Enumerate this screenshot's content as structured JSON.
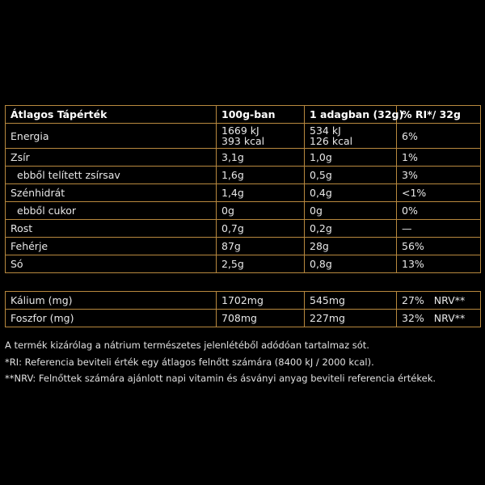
{
  "colors": {
    "border": "#b8893f",
    "background": "#000000"
  },
  "main_table": {
    "headers": [
      "Átlagos Tápérték",
      "100g-ban",
      "1 adagban (32g)",
      "% RI*/ 32g"
    ],
    "rows": [
      {
        "label": "Energia",
        "per100": [
          "1669 kJ",
          "393 kcal"
        ],
        "perServing": [
          "534 kJ",
          "126 kcal"
        ],
        "ri": "6%"
      },
      {
        "label": "Zsír",
        "per100": [
          "3,1g"
        ],
        "perServing": [
          "1,0g"
        ],
        "ri": "1%"
      },
      {
        "label": "ebből telített zsírsav",
        "per100": [
          "1,6g"
        ],
        "perServing": [
          "0,5g"
        ],
        "ri": "3%"
      },
      {
        "label": "Szénhidrát",
        "per100": [
          "1,4g"
        ],
        "perServing": [
          "0,4g"
        ],
        "ri": "<1%"
      },
      {
        "label": "ebből cukor",
        "per100": [
          "0g"
        ],
        "perServing": [
          "0g"
        ],
        "ri": "0%"
      },
      {
        "label": "Rost",
        "per100": [
          "0,7g"
        ],
        "perServing": [
          "0,2g"
        ],
        "ri": "—"
      },
      {
        "label": "Fehérje",
        "per100": [
          "87g"
        ],
        "perServing": [
          "28g"
        ],
        "ri": "56%"
      },
      {
        "label": "Só",
        "per100": [
          "2,5g"
        ],
        "perServing": [
          "0,8g"
        ],
        "ri": "13%"
      }
    ]
  },
  "mineral_table": {
    "rows": [
      {
        "label": "Kálium (mg)",
        "per100": "1702mg",
        "perServing": "545mg",
        "ri": "27%",
        "ri_note": "NRV**"
      },
      {
        "label": "Foszfor (mg)",
        "per100": "708mg",
        "perServing": "227mg",
        "ri": "32%",
        "ri_note": "NRV**"
      }
    ]
  },
  "footnotes": [
    "A termék kizárólag a nátrium természetes jelenlétéből adódóan tartalmaz sót.",
    "*RI: Referencia beviteli érték egy átlagos felnőtt számára (8400 kJ / 2000 kcal).",
    "**NRV: Felnőttek számára ajánlott napi vitamin és ásványi anyag beviteli referencia értékek."
  ]
}
